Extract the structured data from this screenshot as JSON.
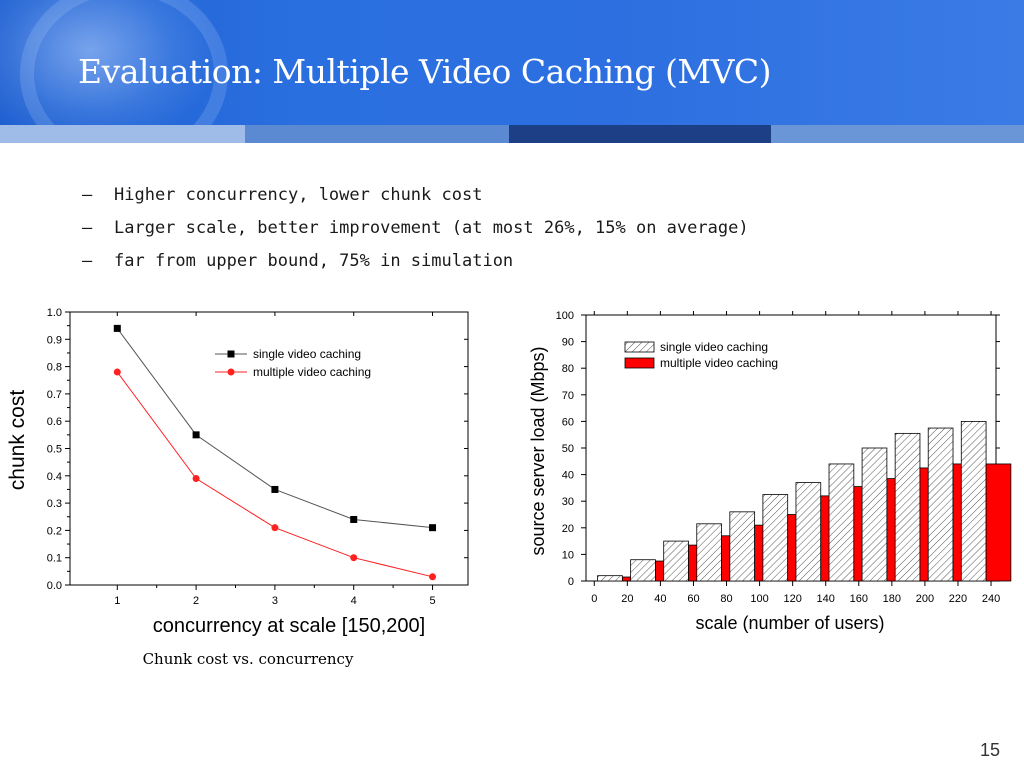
{
  "slide": {
    "title": "Evaluation: Multiple Video Caching (MVC)",
    "page_number": "15"
  },
  "bullets": [
    {
      "marker": "—",
      "text": "Higher concurrency, lower chunk cost"
    },
    {
      "marker": "—",
      "text": "Larger scale, better improvement (at most 26%, 15% on average)"
    },
    {
      "marker": "—",
      "text": "far from upper bound, 75% in simulation"
    }
  ],
  "chart_data": [
    {
      "type": "line",
      "caption": "Chunk cost vs. concurrency",
      "xlabel": "concurrency at scale [150,200]",
      "ylabel": "chunk cost",
      "x": [
        1,
        2,
        3,
        4,
        5
      ],
      "xlim": [
        0.4,
        5.45
      ],
      "ylim": [
        0.0,
        1.0
      ],
      "x_ticks": [
        "1",
        "2",
        "3",
        "4",
        "5"
      ],
      "y_ticks": [
        "0.0",
        "0.1",
        "0.2",
        "0.3",
        "0.4",
        "0.5",
        "0.6",
        "0.7",
        "0.8",
        "0.9",
        "1.0"
      ],
      "legend_position": "upper-right",
      "series": [
        {
          "name": "single video caching",
          "values": [
            0.94,
            0.55,
            0.35,
            0.24,
            0.21
          ],
          "color": "#000000",
          "marker": "square"
        },
        {
          "name": "multiple video caching",
          "values": [
            0.78,
            0.39,
            0.21,
            0.1,
            0.03
          ],
          "color": "#ff2020",
          "marker": "circle"
        }
      ]
    },
    {
      "type": "bar",
      "xlabel": "scale (number of users)",
      "ylabel": "source server load (Mbps)",
      "x_ticks": [
        "0",
        "20",
        "40",
        "60",
        "80",
        "100",
        "120",
        "140",
        "160",
        "180",
        "200",
        "220",
        "240"
      ],
      "y_ticks": [
        "0",
        "10",
        "20",
        "30",
        "40",
        "50",
        "60",
        "70",
        "80",
        "90",
        "100"
      ],
      "xlim": [
        -5,
        243
      ],
      "ylim": [
        0,
        100
      ],
      "categories": [
        10,
        30,
        50,
        70,
        90,
        110,
        130,
        150,
        170,
        190,
        210,
        230
      ],
      "legend_position": "upper-left",
      "series": [
        {
          "name": "single video caching",
          "values": [
            2,
            8,
            15,
            21.5,
            26,
            32.5,
            37,
            44,
            50,
            55.5,
            57.5,
            60
          ],
          "fill": "hatch"
        },
        {
          "name": "multiple video caching",
          "values": [
            1.5,
            7.5,
            13.5,
            17,
            21,
            25,
            32,
            35.5,
            38.5,
            42.5,
            44,
            44
          ],
          "fill": "#ff0000"
        }
      ]
    }
  ]
}
